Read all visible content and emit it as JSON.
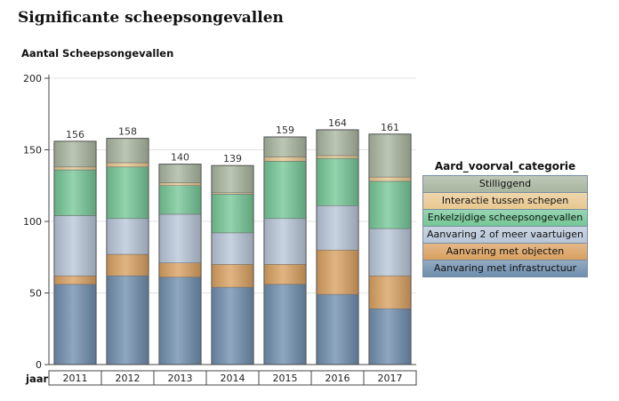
{
  "page": {
    "title": "Significante scheepsongevallen"
  },
  "chart_data": {
    "type": "bar",
    "stacked": true,
    "title": "",
    "ylabel": "Aantal Scheepsongevallen",
    "xlabel": "jaar",
    "ylim": [
      0,
      200
    ],
    "yticks": [
      0,
      50,
      100,
      150,
      200
    ],
    "grid": true,
    "categories": [
      "2011",
      "2012",
      "2013",
      "2014",
      "2015",
      "2016",
      "2017"
    ],
    "totals": [
      156,
      158,
      140,
      139,
      159,
      164,
      161
    ],
    "legend_title": "Aard_voorval_categorie",
    "legend_position": "right",
    "series": [
      {
        "name": "Aanvaring met infrastructuur",
        "color": "#6f8eae",
        "values": [
          56,
          62,
          61,
          54,
          56,
          49,
          39
        ]
      },
      {
        "name": "Aanvaring met objecten",
        "color": "#d9a060",
        "values": [
          6,
          15,
          10,
          16,
          14,
          31,
          23
        ]
      },
      {
        "name": "Aanvaring 2 of meer vaartuigen",
        "color": "#b8c6d8",
        "values": [
          42,
          25,
          34,
          22,
          32,
          31,
          33
        ]
      },
      {
        "name": "Enkelzijdige scheepsongevallen",
        "color": "#74c796",
        "values": [
          32,
          36,
          20,
          27,
          40,
          33,
          33
        ]
      },
      {
        "name": "Interactie tussen schepen",
        "color": "#e8c890",
        "values": [
          2,
          3,
          2,
          1,
          3,
          2,
          3
        ]
      },
      {
        "name": "Stilliggend",
        "color": "#a9b69f",
        "values": [
          18,
          17,
          13,
          19,
          14,
          18,
          30
        ]
      }
    ]
  }
}
